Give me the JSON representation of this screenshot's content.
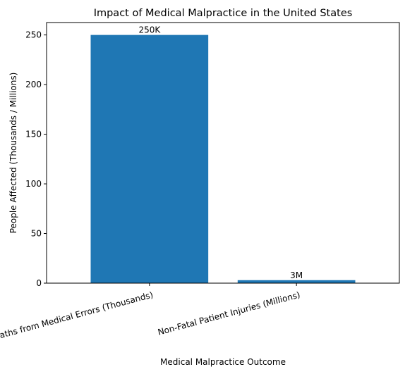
{
  "chart_data": {
    "type": "bar",
    "title": "Impact of Medical Malpractice in the United States",
    "xlabel": "Medical Malpractice Outcome",
    "ylabel": "People Affected (Thousands / Millions)",
    "categories": [
      "Preventable Deaths from Medical Errors (Thousands)",
      "Non-Fatal Patient Injuries (Millions)"
    ],
    "values": [
      250,
      3
    ],
    "data_labels": [
      "250K",
      "3M"
    ],
    "ylim": [
      0,
      262.5
    ],
    "yticks": [
      0,
      50,
      100,
      150,
      200,
      250
    ],
    "colors": {
      "bar": "#1f77b4"
    },
    "grid": false,
    "legend": "none"
  }
}
